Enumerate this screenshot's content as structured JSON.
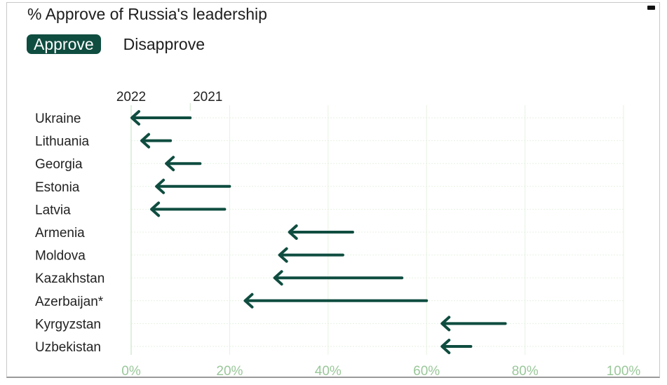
{
  "chart_data": {
    "type": "arrow",
    "title": "% Approve of Russia's leadership",
    "toggle": {
      "options": [
        "Approve",
        "Disapprove"
      ],
      "selected": "Approve"
    },
    "series": [
      {
        "name": "2021"
      },
      {
        "name": "2022"
      }
    ],
    "categories": [
      "Ukraine",
      "Lithuania",
      "Georgia",
      "Estonia",
      "Latvia",
      "Armenia",
      "Moldova",
      "Kazakhstan",
      "Azerbaijan*",
      "Kyrgyzstan",
      "Uzbekistan"
    ],
    "values_2021": [
      12,
      8,
      14,
      20,
      19,
      45,
      43,
      55,
      60,
      76,
      69
    ],
    "values_2022": [
      0,
      2,
      7,
      5,
      4,
      32,
      30,
      29,
      23,
      63,
      63
    ],
    "xlim": [
      0,
      100
    ],
    "xticks": [
      "0%",
      "20%",
      "40%",
      "60%",
      "80%",
      "100%"
    ],
    "grid": true,
    "colors": {
      "arrow": "#0f4d40",
      "grid": "#e6f2e2",
      "tick": "#9ac79a"
    }
  }
}
